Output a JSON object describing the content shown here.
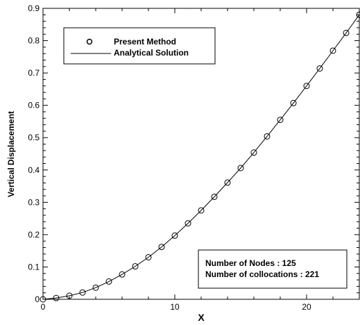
{
  "chart_data": {
    "type": "line",
    "title": "",
    "xlabel": "X",
    "ylabel": "Vertical Displacement",
    "xlim": [
      0,
      24
    ],
    "ylim": [
      0,
      0.9
    ],
    "xticks": [
      0,
      10,
      20
    ],
    "yticks": [
      0,
      0.1,
      0.2,
      0.3,
      0.4,
      0.5,
      0.6,
      0.7,
      0.8,
      0.9
    ],
    "xtick_labels": [
      "0",
      "10",
      "20"
    ],
    "ytick_labels": [
      "0",
      "0.1",
      "0.2",
      "0.3",
      "0.4",
      "0.5",
      "0.6",
      "0.7",
      "0.8",
      "0.9"
    ],
    "grid": false,
    "legend_position": "top-left",
    "series": [
      {
        "name": "Present Method",
        "style": "markers",
        "marker": "circle-open",
        "color": "#000000",
        "x": [
          0,
          1,
          2,
          3,
          4,
          5,
          6,
          7,
          8,
          9,
          10,
          11,
          12,
          13,
          14,
          15,
          16,
          17,
          18,
          19,
          20,
          21,
          22,
          23,
          24
        ],
        "y": [
          0,
          0.004,
          0.011,
          0.021,
          0.036,
          0.055,
          0.077,
          0.102,
          0.13,
          0.162,
          0.197,
          0.235,
          0.275,
          0.317,
          0.361,
          0.406,
          0.454,
          0.504,
          0.555,
          0.607,
          0.66,
          0.714,
          0.769,
          0.824,
          0.88
        ]
      },
      {
        "name": "Analytical Solution",
        "style": "line",
        "color": "#000000",
        "x": [
          0,
          1,
          2,
          3,
          4,
          5,
          6,
          7,
          8,
          9,
          10,
          11,
          12,
          13,
          14,
          15,
          16,
          17,
          18,
          19,
          20,
          21,
          22,
          23,
          24
        ],
        "y": [
          0,
          0.004,
          0.011,
          0.021,
          0.036,
          0.055,
          0.077,
          0.102,
          0.13,
          0.162,
          0.197,
          0.235,
          0.275,
          0.317,
          0.361,
          0.406,
          0.454,
          0.504,
          0.555,
          0.607,
          0.66,
          0.714,
          0.769,
          0.824,
          0.88
        ]
      }
    ],
    "annotation": {
      "lines": [
        "Number of Nodes : 125",
        "Number of collocations : 221"
      ],
      "position": "bottom-right"
    }
  }
}
